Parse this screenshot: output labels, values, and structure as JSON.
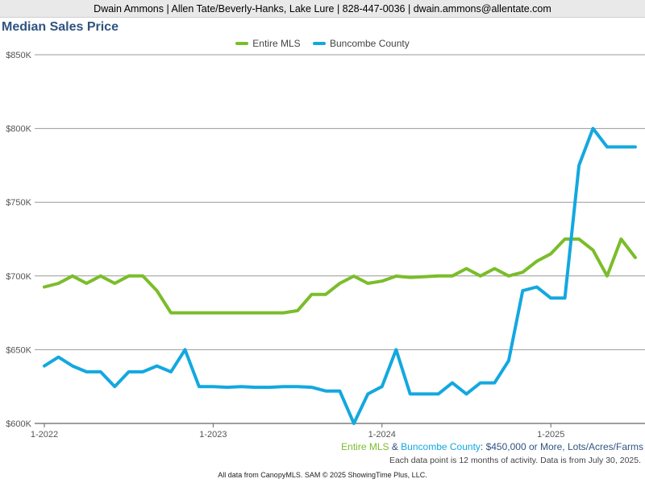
{
  "header": {
    "text": "Dwain Ammons | Allen Tate/Beverly-Hanks, Lake Lure | 828-447-0036 | dwain.ammons@allentate.com"
  },
  "colors": {
    "entire_mls": "#7abd2a",
    "buncombe": "#13a8e0",
    "title": "#2f5480",
    "grid": "#999999"
  },
  "caption": {
    "part1": "Entire MLS",
    "part2": " & ",
    "part3": "Buncombe County",
    "part4": ": $450,000 or More, Lots/Acres/Farms"
  },
  "subcaption": "Each data point is 12 months of activity. Data is from July 30, 2025.",
  "footer": "All data from CanopyMLS. SAM © 2025 ShowingTime Plus, LLC.",
  "chart_data": {
    "type": "line",
    "title": "Median Sales Price",
    "ylim": [
      600000,
      850000
    ],
    "y_ticks": [
      "$600K",
      "$650K",
      "$700K",
      "$750K",
      "$800K",
      "$850K"
    ],
    "x_ticks": [
      "1-2022",
      "1-2023",
      "1-2024",
      "1-2025"
    ],
    "x": [
      "2022-01",
      "2022-02",
      "2022-03",
      "2022-04",
      "2022-05",
      "2022-06",
      "2022-07",
      "2022-08",
      "2022-09",
      "2022-10",
      "2022-11",
      "2022-12",
      "2023-01",
      "2023-02",
      "2023-03",
      "2023-04",
      "2023-05",
      "2023-06",
      "2023-07",
      "2023-08",
      "2023-09",
      "2023-10",
      "2023-11",
      "2023-12",
      "2024-01",
      "2024-02",
      "2024-03",
      "2024-04",
      "2024-05",
      "2024-06",
      "2024-07",
      "2024-08",
      "2024-09",
      "2024-10",
      "2024-11",
      "2024-12",
      "2025-01",
      "2025-02",
      "2025-03",
      "2025-04",
      "2025-05",
      "2025-06",
      "2025-07"
    ],
    "series": [
      {
        "name": "Entire MLS",
        "values": [
          692500,
          695000,
          700000,
          695000,
          700000,
          695000,
          700000,
          700000,
          690000,
          675000,
          675000,
          675000,
          675000,
          675000,
          675000,
          675000,
          675000,
          675000,
          676500,
          687500,
          687500,
          695000,
          699900,
          695000,
          696500,
          699900,
          699000,
          699500,
          700000,
          700000,
          705000,
          700000,
          705000,
          700000,
          702500,
          710000,
          715000,
          725000,
          725000,
          717500,
          700000,
          725000,
          712500
        ]
      },
      {
        "name": "Buncombe County",
        "values": [
          639000,
          645000,
          639000,
          635000,
          635000,
          625000,
          635000,
          635000,
          639000,
          635000,
          650000,
          625000,
          625000,
          624500,
          625000,
          624500,
          624500,
          625000,
          625000,
          624500,
          622000,
          622000,
          600000,
          620000,
          625000,
          650000,
          620000,
          620000,
          620000,
          627500,
          620000,
          627500,
          627500,
          642500,
          690000,
          692500,
          685000,
          685000,
          775000,
          800000,
          787500,
          787500,
          787500
        ]
      }
    ]
  }
}
